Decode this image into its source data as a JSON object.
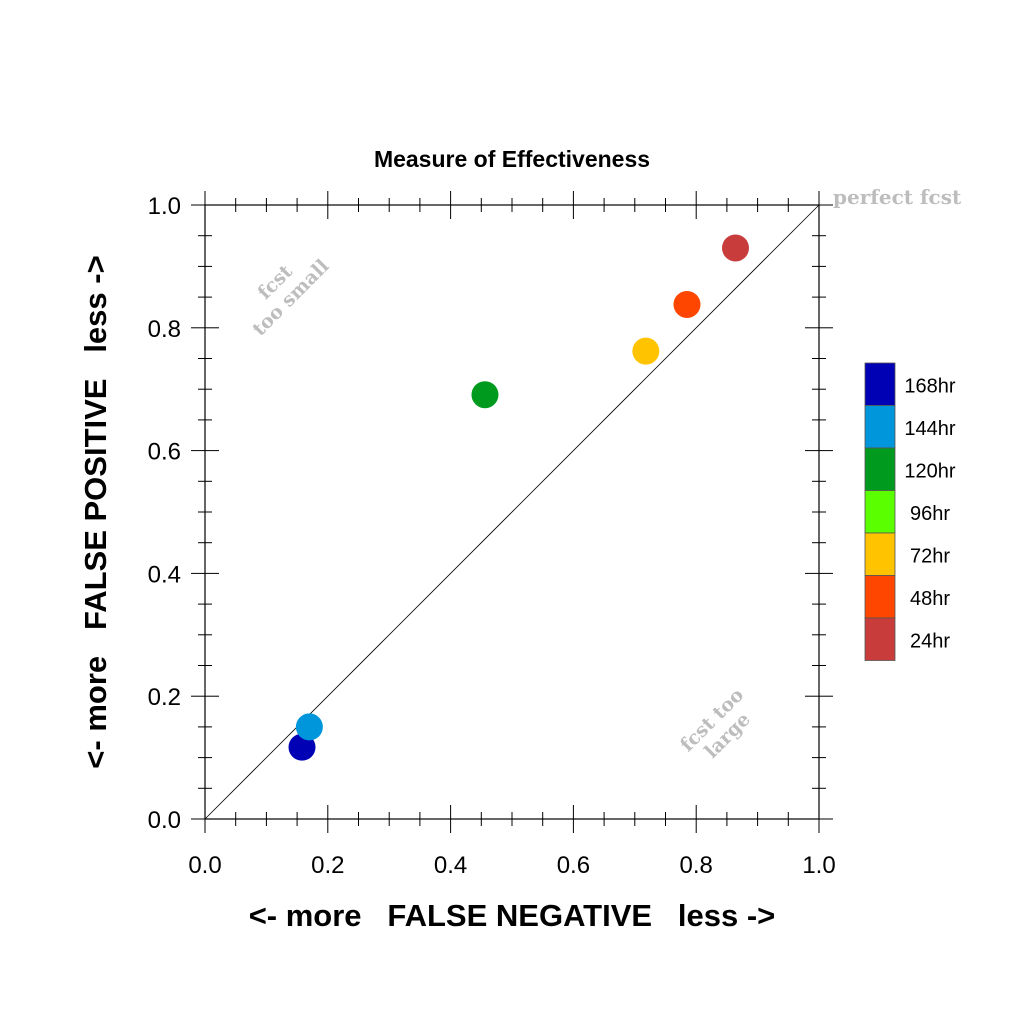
{
  "chart_data": {
    "type": "scatter",
    "title": "Measure of Effectiveness",
    "xlabel": "<- more   FALSE NEGATIVE   less ->",
    "ylabel": "<- more   FALSE POSITIVE   less ->",
    "xlim": [
      0.0,
      1.0
    ],
    "ylim": [
      0.0,
      1.0
    ],
    "x_ticks": [
      "0.0",
      "0.2",
      "0.4",
      "0.6",
      "0.8",
      "1.0"
    ],
    "y_ticks": [
      "0.0",
      "0.2",
      "0.4",
      "0.6",
      "0.8",
      "1.0"
    ],
    "grid": false,
    "reference_line": "diagonal",
    "annotations": {
      "perfect": "perfect fcst",
      "small_line1": "fcst",
      "small_line2": "too small",
      "large_line1": "fcst too",
      "large_line2": "large"
    },
    "legend": {
      "placement": "right",
      "entries": [
        {
          "label": "168hr",
          "color": "#0000b4"
        },
        {
          "label": "144hr",
          "color": "#0096dc"
        },
        {
          "label": "120hr",
          "color": "#009b1e"
        },
        {
          "label": "96hr",
          "color": "#5aff00"
        },
        {
          "label": "72hr",
          "color": "#ffc300"
        },
        {
          "label": "48hr",
          "color": "#ff4600"
        },
        {
          "label": "24hr",
          "color": "#c83c3c"
        }
      ]
    },
    "points": [
      {
        "label": "168hr",
        "x": 0.158,
        "y": 0.117,
        "color": "#0000b4"
      },
      {
        "label": "144hr",
        "x": 0.17,
        "y": 0.15,
        "color": "#0096dc"
      },
      {
        "label": "120hr",
        "x": 0.456,
        "y": 0.691,
        "color": "#009b1e"
      },
      {
        "label": "72hr",
        "x": 0.718,
        "y": 0.762,
        "color": "#ffc300"
      },
      {
        "label": "48hr",
        "x": 0.785,
        "y": 0.838,
        "color": "#ff4600"
      },
      {
        "label": "24hr",
        "x": 0.864,
        "y": 0.93,
        "color": "#c83c3c"
      }
    ]
  }
}
